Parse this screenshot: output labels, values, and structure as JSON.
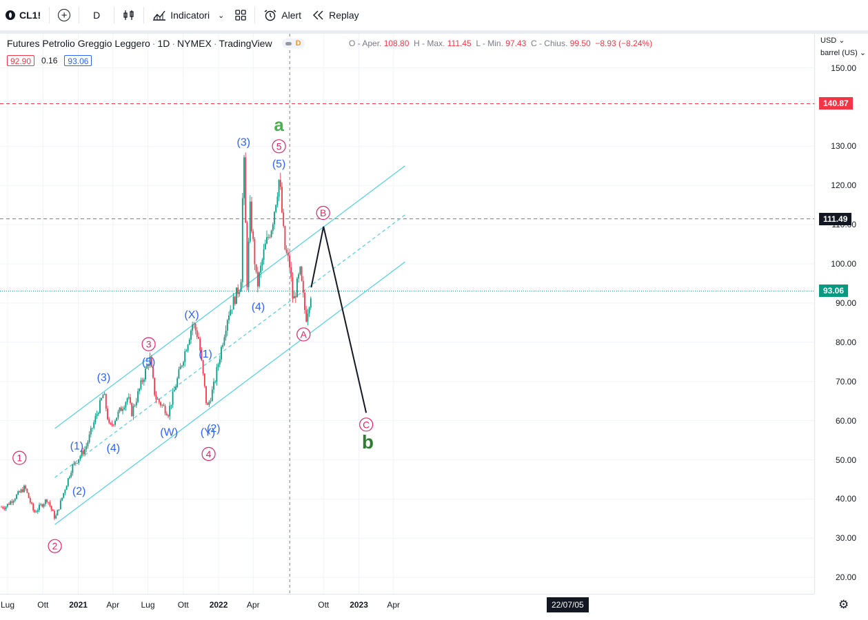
{
  "toolbar": {
    "symbol": "CL1!",
    "interval": "D",
    "indicators_label": "Indicatori",
    "alert_label": "Alert",
    "replay_label": "Replay"
  },
  "legend": {
    "title": "Futures Petrolio Greggio Leggero",
    "interval": "1D",
    "exchange": "NYMEX",
    "source": "TradingView",
    "badge": "D",
    "open_label": "O - Aper.",
    "open": "108.80",
    "high_label": "H - Max.",
    "high": "111.45",
    "low_label": "L - Min.",
    "low": "97.43",
    "close_label": "C - Chius.",
    "close": "99.50",
    "change": "−8.93 (−8.24%)",
    "bid": "92.90",
    "spread": "0.16",
    "ask": "93.06"
  },
  "price_axis": {
    "currency": "USD",
    "unit": "barrel (US)",
    "ticks": [
      "150.00",
      "130.00",
      "120.00",
      "110.00",
      "100.00",
      "90.00",
      "80.00",
      "70.00",
      "60.00",
      "50.00",
      "40.00",
      "30.00",
      "20.00"
    ],
    "labels": [
      {
        "text": "140.87",
        "color": "#f23645"
      },
      {
        "text": "111.49",
        "color": "#131722"
      },
      {
        "text": "93.06",
        "color": "#089981"
      }
    ]
  },
  "time_axis": {
    "ticks": [
      {
        "text": "Lug",
        "bold": false
      },
      {
        "text": "Ott",
        "bold": false
      },
      {
        "text": "2021",
        "bold": true
      },
      {
        "text": "Apr",
        "bold": false
      },
      {
        "text": "Lug",
        "bold": false
      },
      {
        "text": "Ott",
        "bold": false
      },
      {
        "text": "2022",
        "bold": true
      },
      {
        "text": "Apr",
        "bold": false
      },
      {
        "text": "Ott",
        "bold": false
      },
      {
        "text": "2023",
        "bold": true
      },
      {
        "text": "Apr",
        "bold": false
      }
    ],
    "cursor_date": "22/07/05"
  },
  "colors": {
    "up": "#089981",
    "down": "#f23645",
    "channel": "#4dd0e1",
    "wave_blue": "#2962ff",
    "wave_pink": "#e91e63",
    "wave_green": "#4caf50",
    "wave_dark_green": "#2e7d32"
  },
  "wave_labels": {
    "blue": [
      "(1)",
      "(2)",
      "(3)",
      "(4)",
      "(5)",
      "(W)",
      "(X)",
      "(Y)",
      "(1)",
      "(2)",
      "(3)",
      "(4)",
      "(5)"
    ],
    "circled": [
      "1",
      "2",
      "3",
      "4",
      "5",
      "A",
      "B",
      "C"
    ],
    "degree": [
      "a",
      "b"
    ]
  },
  "chart_data": {
    "type": "candlestick",
    "title": "Futures Petrolio Greggio Leggero · 1D · NYMEX",
    "x_range": [
      "2020-07",
      "2023-05"
    ],
    "ylim": [
      15,
      155
    ],
    "horizontal_levels": [
      140.87,
      111.49,
      93.06
    ],
    "price_path": [
      {
        "date": "2020-06-25",
        "price": 38
      },
      {
        "date": "2020-08-15",
        "price": 43
      },
      {
        "date": "2020-09-08",
        "price": 36.5
      },
      {
        "date": "2020-10-12",
        "price": 40
      },
      {
        "date": "2020-11-02",
        "price": 35
      },
      {
        "date": "2020-12-15",
        "price": 48
      },
      {
        "date": "2021-01-20",
        "price": 53
      },
      {
        "date": "2021-03-08",
        "price": 67
      },
      {
        "date": "2021-03-23",
        "price": 58
      },
      {
        "date": "2021-05-10",
        "price": 66
      },
      {
        "date": "2021-05-20",
        "price": 62
      },
      {
        "date": "2021-07-06",
        "price": 76
      },
      {
        "date": "2021-07-20",
        "price": 66
      },
      {
        "date": "2021-08-23",
        "price": 62
      },
      {
        "date": "2021-10-26",
        "price": 85
      },
      {
        "date": "2021-11-10",
        "price": 81
      },
      {
        "date": "2021-12-02",
        "price": 63
      },
      {
        "date": "2021-12-20",
        "price": 69
      },
      {
        "date": "2022-01-25",
        "price": 87
      },
      {
        "date": "2022-02-28",
        "price": 95
      },
      {
        "date": "2022-03-07",
        "price": 130
      },
      {
        "date": "2022-03-16",
        "price": 95
      },
      {
        "date": "2022-03-24",
        "price": 114
      },
      {
        "date": "2022-04-11",
        "price": 94
      },
      {
        "date": "2022-05-01",
        "price": 104
      },
      {
        "date": "2022-05-20",
        "price": 110
      },
      {
        "date": "2022-06-08",
        "price": 122
      },
      {
        "date": "2022-06-22",
        "price": 104
      },
      {
        "date": "2022-07-05",
        "price": 99.5
      },
      {
        "date": "2022-07-14",
        "price": 90
      },
      {
        "date": "2022-08-01",
        "price": 98
      },
      {
        "date": "2022-08-16",
        "price": 86
      },
      {
        "date": "2022-08-30",
        "price": 93
      }
    ],
    "channel": {
      "upper": [
        {
          "date": "2020-11-01",
          "price": 58
        },
        {
          "date": "2023-05-01",
          "price": 125
        }
      ],
      "middle": [
        {
          "date": "2020-11-01",
          "price": 45.5
        },
        {
          "date": "2023-05-01",
          "price": 112.5
        }
      ],
      "lower": [
        {
          "date": "2020-11-01",
          "price": 33.5
        },
        {
          "date": "2023-05-01",
          "price": 100.5
        }
      ]
    },
    "projection": [
      {
        "date": "2022-08-30",
        "price": 94
      },
      {
        "date": "2022-10-01",
        "price": 109.5
      },
      {
        "date": "2023-01-20",
        "price": 62
      }
    ],
    "labels": [
      {
        "text": "1",
        "style": "circle-pink",
        "date": "2020-08-01",
        "price": 50.5
      },
      {
        "text": "2",
        "style": "circle-pink",
        "date": "2020-11-01",
        "price": 28
      },
      {
        "text": "(1)",
        "style": "blue",
        "date": "2020-12-28",
        "price": 53.5
      },
      {
        "text": "(2)",
        "style": "blue",
        "date": "2021-01-03",
        "price": 42
      },
      {
        "text": "(3)",
        "style": "blue",
        "date": "2021-03-08",
        "price": 71
      },
      {
        "text": "(4)",
        "style": "blue",
        "date": "2021-04-02",
        "price": 53
      },
      {
        "text": "3",
        "style": "circle-pink",
        "date": "2021-07-03",
        "price": 79.5
      },
      {
        "text": "(5)",
        "style": "blue",
        "date": "2021-07-03",
        "price": 75
      },
      {
        "text": "(W)",
        "style": "blue",
        "date": "2021-08-25",
        "price": 57
      },
      {
        "text": "(X)",
        "style": "blue",
        "date": "2021-10-23",
        "price": 87
      },
      {
        "text": "(1)",
        "style": "blue",
        "date": "2021-11-28",
        "price": 77
      },
      {
        "text": "(Y)",
        "style": "blue",
        "date": "2021-12-04",
        "price": 57
      },
      {
        "text": "(2)",
        "style": "blue",
        "date": "2021-12-19",
        "price": 58
      },
      {
        "text": "4",
        "style": "circle-pink",
        "date": "2021-12-06",
        "price": 51.5
      },
      {
        "text": "(3)",
        "style": "blue",
        "date": "2022-03-07",
        "price": 131
      },
      {
        "text": "(4)",
        "style": "blue",
        "date": "2022-04-14",
        "price": 89
      },
      {
        "text": "a",
        "style": "green",
        "date": "2022-06-07",
        "price": 135.5
      },
      {
        "text": "5",
        "style": "circle-pink",
        "date": "2022-06-07",
        "price": 130
      },
      {
        "text": "(5)",
        "style": "blue",
        "date": "2022-06-07",
        "price": 125.5
      },
      {
        "text": "A",
        "style": "circle-pink",
        "date": "2022-08-10",
        "price": 82
      },
      {
        "text": "B",
        "style": "circle-pink",
        "date": "2022-09-30",
        "price": 113
      },
      {
        "text": "C",
        "style": "circle-pink",
        "date": "2023-01-20",
        "price": 59
      },
      {
        "text": "b",
        "style": "dark-green",
        "date": "2023-01-24",
        "price": 54.5
      }
    ]
  }
}
